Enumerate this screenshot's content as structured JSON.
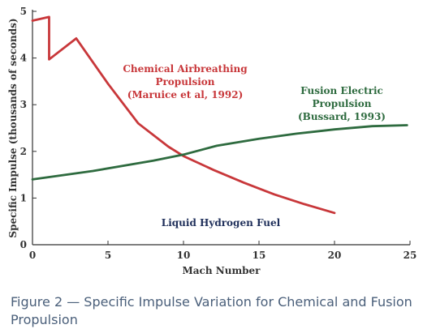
{
  "chart_data": {
    "type": "line",
    "xlabel": "Mach Number",
    "ylabel": "Specific Impulse (thousands of seconds)",
    "xlim": [
      0,
      25
    ],
    "ylim": [
      0,
      5
    ],
    "xticks": [
      "0",
      "5",
      "10",
      "15",
      "20",
      "25"
    ],
    "yticks": [
      "0",
      "1",
      "2",
      "3",
      "4",
      "5"
    ],
    "grid": false,
    "series": [
      {
        "name": "Chemical Airbreathing Propulsion (Maruice et al, 1992)",
        "color": "#c8373a",
        "x": [
          0,
          1.1,
          1.1,
          2.9,
          5,
          7,
          9,
          10,
          12,
          14,
          16,
          18,
          20
        ],
        "y": [
          4.8,
          4.88,
          3.97,
          4.42,
          3.45,
          2.6,
          2.1,
          1.9,
          1.6,
          1.33,
          1.08,
          0.87,
          0.68
        ]
      },
      {
        "name": "Fusion Electric Propulsion (Bussard, 1993)",
        "color": "#2e6b3f",
        "x": [
          0,
          4,
          8,
          10,
          12.2,
          15,
          17.5,
          20,
          22.5,
          24.8
        ],
        "y": [
          1.4,
          1.58,
          1.8,
          1.93,
          2.12,
          2.27,
          2.38,
          2.47,
          2.54,
          2.56
        ]
      }
    ],
    "annotations": {
      "chemical": {
        "lines": [
          "Chemical Airbreathing",
          "Propulsion",
          "(Maruice et al, 1992)"
        ],
        "color": "#c8373a"
      },
      "fusion": {
        "lines": [
          "Fusion Electric",
          "Propulsion",
          "(Bussard, 1993)"
        ],
        "color": "#2e6b3f"
      },
      "fuel": {
        "text": "Liquid Hydrogen Fuel",
        "color": "#1f2f5a"
      }
    }
  },
  "caption": "Figure 2 — Specific Impulse Variation for Chemical and Fusion Propulsion"
}
